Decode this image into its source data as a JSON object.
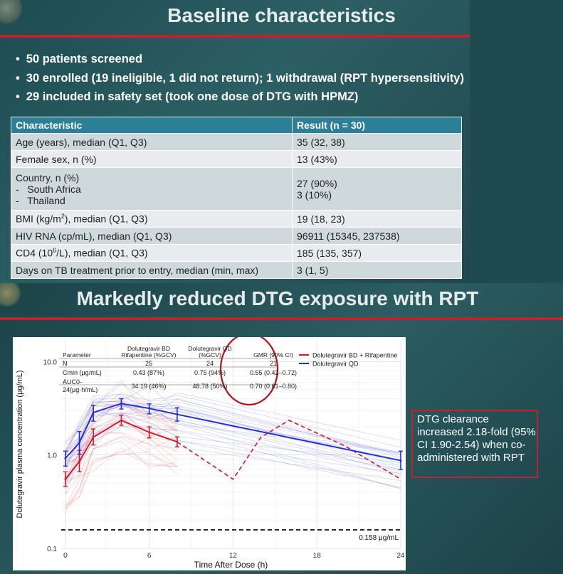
{
  "slide1": {
    "title": "Baseline characteristics",
    "bullets": [
      "50 patients screened",
      "30 enrolled (19 ineligible, 1 did not return); 1 withdrawal (RPT hypersensitivity)",
      "29 included in safety set (took one dose of DTG with HPMZ)"
    ],
    "table": {
      "headers": [
        "Characteristic",
        "Result (n = 30)"
      ],
      "rows": [
        {
          "c": "Age (years), median (Q1, Q3)",
          "r": "35 (32, 38)"
        },
        {
          "c": "Female sex, n (%)",
          "r": "13 (43%)"
        },
        {
          "c": "Country, n (%)",
          "c2": "-   South Africa",
          "c3": "-   Thailand",
          "r": "",
          "r2": "27 (90%)",
          "r3": "3 (10%)"
        },
        {
          "c_pre": "BMI (kg/m",
          "c_sup": "2",
          "c_post": "), median (Q1, Q3)",
          "r": "19 (18, 23)"
        },
        {
          "c": "HIV RNA (cp/mL), median (Q1, Q3)",
          "r": "96911 (15345, 237538)"
        },
        {
          "c_pre": "CD4 (10",
          "c_sup": "6",
          "c_post": "/L), median (Q1, Q3)",
          "r": "185 (135, 357)"
        },
        {
          "c": "Days on TB treatment prior to entry, median (min, max)",
          "r": "3 (1, 5)"
        }
      ]
    }
  },
  "slide2": {
    "title": "Markedly reduced DTG exposure with RPT",
    "note": "DTG clearance increased 2.18-fold (95% CI 1.90-2.54) when co-administered with RPT",
    "param_table": {
      "headers": [
        "Parameter",
        "Dolutegravir BD Rifapentine (%GCV)",
        "Dolutegravir QD (%GCV)",
        "GMR (90% CI)"
      ],
      "rows": [
        [
          "N",
          "25",
          "24",
          "21"
        ],
        [
          "Cmin (μg/mL)",
          "0.43 (87%)",
          "0.75 (94%)",
          "0.55 (0.42–0.72)"
        ],
        [
          "AUC0-24(μg·h/mL)",
          "34.19 (46%)",
          "48.78 (50%)",
          "0.70 (0.61–0.80)"
        ]
      ]
    }
  },
  "chart_data": {
    "type": "line",
    "xlabel": "Time After Dose (h)",
    "ylabel": "Dolutegravir plasma concentration (μg/mL)",
    "x_ticks": [
      0,
      6,
      12,
      18,
      24
    ],
    "y_ticks": [
      0.1,
      1.0,
      10.0
    ],
    "y_tick_labels": [
      "0.1",
      "1.0",
      "10.0"
    ],
    "y_scale": "log",
    "xlim": [
      -0.3,
      24
    ],
    "ylim": [
      0.1,
      17
    ],
    "legend_position": "top-right",
    "series": [
      {
        "name": "Dolutegravir BD + Rifapentine",
        "color": "#e0151b",
        "x": [
          0,
          1,
          2,
          4,
          6,
          8
        ],
        "y": [
          0.55,
          0.85,
          1.55,
          2.35,
          1.75,
          1.38
        ],
        "err_low": [
          0.46,
          0.66,
          1.28,
          2.08,
          1.52,
          1.22
        ],
        "err_high": [
          0.66,
          1.12,
          1.9,
          2.65,
          2.0,
          1.56
        ]
      },
      {
        "name": "Dolutegravir QD",
        "color": "#1d2fd6",
        "x": [
          0,
          1,
          2,
          4,
          6,
          8,
          24
        ],
        "y": [
          0.92,
          1.35,
          2.85,
          3.55,
          3.15,
          2.72,
          0.87
        ],
        "err_low": [
          0.76,
          1.02,
          2.3,
          3.1,
          2.75,
          2.3,
          0.7
        ],
        "err_high": [
          1.1,
          1.78,
          3.4,
          4.0,
          3.52,
          3.2,
          1.1
        ]
      }
    ],
    "bd_projection": {
      "x": [
        8,
        12,
        14,
        16,
        20,
        24
      ],
      "y": [
        1.38,
        0.55,
        1.55,
        2.35,
        1.25,
        0.55
      ]
    },
    "threshold": {
      "y": 0.158,
      "label": "0.158 μg/mL"
    }
  }
}
